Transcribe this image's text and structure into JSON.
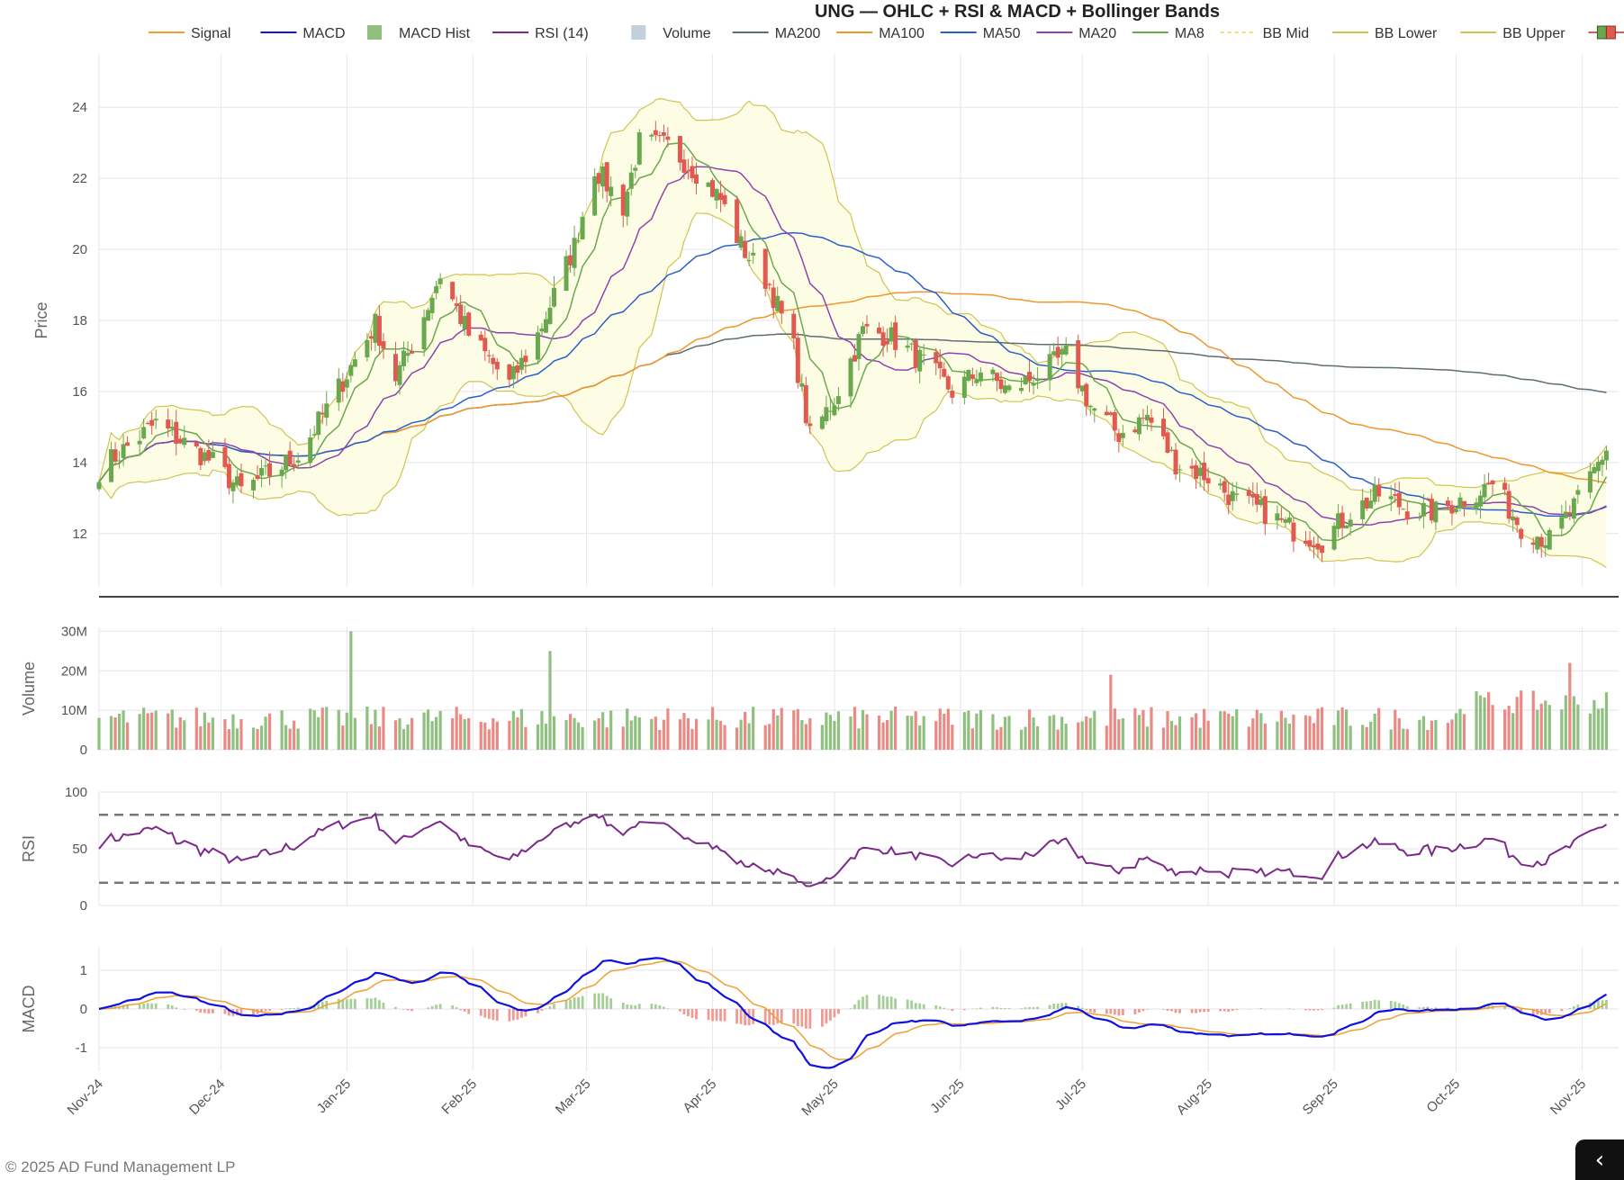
{
  "footer": {
    "copyright": "© 2025 AD Fund Management LP"
  },
  "corner_button": {
    "icon": "chevron-left-icon",
    "glyph": "‹"
  },
  "chart_data": {
    "type": "candlestick",
    "title": "UNG — OHLC + RSI & MACD + Bollinger Bands",
    "legend": [
      {
        "label": "Signal",
        "color": "#f0a030",
        "kind": "line"
      },
      {
        "label": "MACD",
        "color": "#1010e0",
        "kind": "line"
      },
      {
        "label": "MACD Hist",
        "color": "#8fc07f",
        "kind": "box"
      },
      {
        "label": "RSI (14)",
        "color": "#7b2a8a",
        "kind": "line"
      },
      {
        "label": "Volume",
        "color": "#c3cfdc",
        "kind": "box"
      },
      {
        "label": "MA200",
        "color": "#5d6d74",
        "kind": "line"
      },
      {
        "label": "MA100",
        "color": "#f0962a",
        "kind": "line"
      },
      {
        "label": "MA50",
        "color": "#2b5fc9",
        "kind": "line"
      },
      {
        "label": "MA20",
        "color": "#8e44ad",
        "kind": "line"
      },
      {
        "label": "MA8",
        "color": "#6aa84f",
        "kind": "line"
      },
      {
        "label": "BB Mid",
        "color": "#e8e070",
        "kind": "dash"
      },
      {
        "label": "BB Lower",
        "color": "#d0c450",
        "kind": "line"
      },
      {
        "label": "BB Upper",
        "color": "#d0c450",
        "kind": "line"
      },
      {
        "label": "Price",
        "color": "#e05a4f",
        "kind": "candle"
      }
    ],
    "x_range": [
      "2024-11-01",
      "2025-11-10"
    ],
    "x_ticks": [
      "Nov-24",
      "Dec-24",
      "Jan-25",
      "Feb-25",
      "Mar-25",
      "Apr-25",
      "May-25",
      "Jun-25",
      "Jul-25",
      "Aug-25",
      "Sep-25",
      "Oct-25",
      "Nov-25"
    ],
    "x_tick_dates": [
      "2024-11-01",
      "2024-12-01",
      "2025-01-01",
      "2025-02-01",
      "2025-03-01",
      "2025-04-01",
      "2025-05-01",
      "2025-06-01",
      "2025-07-01",
      "2025-08-01",
      "2025-09-01",
      "2025-10-01",
      "2025-11-01"
    ],
    "panels": {
      "price": {
        "ylabel": "Price",
        "ylim": [
          10.5,
          25.5
        ],
        "ticks": [
          12,
          14,
          16,
          18,
          20,
          22,
          24
        ]
      },
      "volume": {
        "ylabel": "Volume",
        "ylim": [
          0,
          31
        ],
        "ticks": [
          0,
          10,
          20,
          30
        ],
        "tick_labels": [
          "0",
          "10M",
          "20M",
          "30M"
        ]
      },
      "rsi": {
        "ylabel": "RSI",
        "ylim": [
          0,
          100
        ],
        "ticks": [
          0,
          50,
          100
        ],
        "overbought": 80,
        "oversold": 20
      },
      "macd": {
        "ylabel": "MACD",
        "ylim": [
          -1.6,
          1.6
        ],
        "ticks": [
          -1,
          0,
          1
        ]
      }
    },
    "colors": {
      "up": "#6aa84f",
      "down": "#e05a4f",
      "bb_fill": "#fdfde6",
      "vol_up": "#8fc07f",
      "vol_down": "#e98a84",
      "hist_up": "#a6cf98",
      "hist_down": "#f09a94",
      "grid": "#e5e5ec"
    },
    "close_anchors": {
      "dates": [
        "2024-11-01",
        "2024-11-15",
        "2024-11-29",
        "2024-12-06",
        "2024-12-13",
        "2024-12-20",
        "2024-12-27",
        "2025-01-03",
        "2025-01-08",
        "2025-01-13",
        "2025-01-17",
        "2025-01-24",
        "2025-01-31",
        "2025-02-10",
        "2025-02-17",
        "2025-02-26",
        "2025-03-03",
        "2025-03-10",
        "2025-03-14",
        "2025-03-21",
        "2025-03-28",
        "2025-04-03",
        "2025-04-08",
        "2025-04-15",
        "2025-04-21",
        "2025-04-25",
        "2025-05-01",
        "2025-05-08",
        "2025-05-14",
        "2025-05-22",
        "2025-05-30",
        "2025-06-06",
        "2025-06-13",
        "2025-06-20",
        "2025-06-27",
        "2025-07-03",
        "2025-07-10",
        "2025-07-17",
        "2025-07-24",
        "2025-08-01",
        "2025-08-08",
        "2025-08-15",
        "2025-08-22",
        "2025-08-29",
        "2025-09-05",
        "2025-09-12",
        "2025-09-19",
        "2025-09-26",
        "2025-10-03",
        "2025-10-10",
        "2025-10-17",
        "2025-10-24",
        "2025-10-31",
        "2025-11-07"
      ],
      "values": [
        13.8,
        15.1,
        14.0,
        13.2,
        13.7,
        14.2,
        15.5,
        16.9,
        17.9,
        16.4,
        17.3,
        19.3,
        17.6,
        16.2,
        17.6,
        20.1,
        22.3,
        21.2,
        23.0,
        22.9,
        22.2,
        21.4,
        20.1,
        19.0,
        17.2,
        14.7,
        15.8,
        17.7,
        17.6,
        16.9,
        16.0,
        16.6,
        16.0,
        16.5,
        17.0,
        15.6,
        14.8,
        15.3,
        14.0,
        13.6,
        12.9,
        12.6,
        12.1,
        11.8,
        12.6,
        13.1,
        12.7,
        12.6,
        13.0,
        13.4,
        12.2,
        11.8,
        12.9,
        14.4
      ]
    },
    "volume_spikes_m": {
      "2025-01-02": 30,
      "2025-02-20": 25,
      "2025-07-08": 19,
      "2025-10-29": 22
    }
  }
}
